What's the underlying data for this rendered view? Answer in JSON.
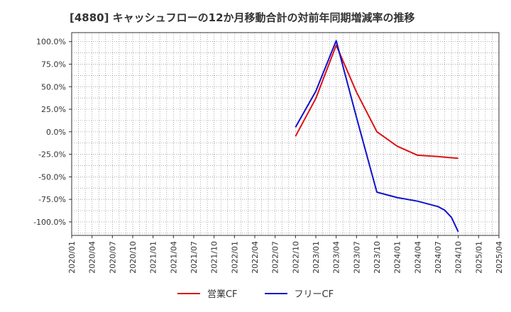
{
  "chart_data": {
    "type": "line",
    "title": "[4880]  キャッシュフローの12か月移動合計の対前年同期増減率の推移",
    "xlabel": "",
    "ylabel": "",
    "ylim": [
      -115,
      110
    ],
    "yticks": [
      100,
      75,
      50,
      25,
      0,
      -25,
      -50,
      -75,
      -100
    ],
    "ytick_labels": [
      "100.0%",
      "75.0%",
      "50.0%",
      "25.0%",
      "0.0%",
      "-25.0%",
      "-50.0%",
      "-75.0%",
      "-100.0%"
    ],
    "x_categories": [
      "2020/01",
      "2020/04",
      "2020/07",
      "2020/10",
      "2021/01",
      "2021/04",
      "2021/07",
      "2021/10",
      "2022/01",
      "2022/04",
      "2022/07",
      "2022/10",
      "2023/01",
      "2023/04",
      "2023/07",
      "2023/10",
      "2024/01",
      "2024/04",
      "2024/07",
      "2024/10",
      "2025/01",
      "2025/04"
    ],
    "series": [
      {
        "name": "営業CF",
        "color": "#dd1111",
        "points": [
          {
            "x": "2022/10",
            "y": -5
          },
          {
            "x": "2023/01",
            "y": 37
          },
          {
            "x": "2023/04",
            "y": 96
          },
          {
            "x": "2023/07",
            "y": 44
          },
          {
            "x": "2023/10",
            "y": 0
          },
          {
            "x": "2024/01",
            "y": -16
          },
          {
            "x": "2024/04",
            "y": -26
          },
          {
            "x": "2024/07",
            "y": -27.5
          },
          {
            "x": "2024/10",
            "y": -29.5
          }
        ]
      },
      {
        "name": "フリーCF",
        "color": "#1111cc",
        "points": [
          {
            "x": "2022/10",
            "y": 5
          },
          {
            "x": "2023/01",
            "y": 45
          },
          {
            "x": "2023/04",
            "y": 101
          },
          {
            "x": "2023/07",
            "y": 16
          },
          {
            "x": "2023/10",
            "y": -67
          },
          {
            "x": "2024/01",
            "y": -73
          },
          {
            "x": "2024/04",
            "y": -77
          },
          {
            "x": "2024/07",
            "y": -83
          },
          {
            "x": "2024/08",
            "y": -87
          },
          {
            "x": "2024/09",
            "y": -95
          },
          {
            "x": "2024/10",
            "y": -111
          }
        ]
      }
    ],
    "legend": "bottom-center",
    "grid": true
  }
}
